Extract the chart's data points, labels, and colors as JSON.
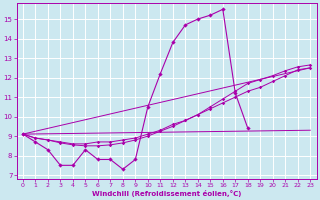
{
  "xlabel": "Windchill (Refroidissement éolien,°C)",
  "ylabel": "",
  "background_color": "#cce8f0",
  "grid_color": "#ffffff",
  "line_color": "#aa00aa",
  "xlim": [
    -0.5,
    23.5
  ],
  "ylim": [
    6.8,
    15.8
  ],
  "xticks": [
    0,
    1,
    2,
    3,
    4,
    5,
    6,
    7,
    8,
    9,
    10,
    11,
    12,
    13,
    14,
    15,
    16,
    17,
    18,
    19,
    20,
    21,
    22,
    23
  ],
  "yticks": [
    7,
    8,
    9,
    10,
    11,
    12,
    13,
    14,
    15
  ],
  "series_jagged": {
    "x": [
      0,
      1,
      2,
      3,
      4,
      5,
      6,
      7,
      8,
      9,
      10,
      11,
      12,
      13,
      14,
      15,
      16,
      17,
      18
    ],
    "y": [
      9.1,
      8.7,
      8.3,
      7.5,
      7.5,
      8.3,
      7.8,
      7.8,
      7.3,
      7.8,
      10.5,
      12.2,
      13.8,
      14.7,
      15.0,
      15.2,
      15.5,
      11.2,
      9.4
    ]
  },
  "series_line2": {
    "x": [
      0,
      1,
      2,
      3,
      4,
      5,
      6,
      7,
      8,
      9,
      10,
      11,
      12,
      13,
      14,
      15,
      16,
      17,
      18,
      19,
      20,
      21,
      22,
      23
    ],
    "y": [
      9.1,
      8.9,
      8.8,
      8.7,
      8.6,
      8.6,
      8.7,
      8.7,
      8.8,
      8.9,
      9.1,
      9.3,
      9.6,
      9.8,
      10.1,
      10.4,
      10.7,
      11.0,
      11.3,
      11.5,
      11.8,
      12.1,
      12.4,
      12.5
    ]
  },
  "series_line3": {
    "x": [
      0,
      1,
      2,
      3,
      4,
      5,
      6,
      7,
      8,
      9,
      10,
      11,
      12,
      13,
      14,
      15,
      16,
      17,
      18,
      19,
      20,
      21,
      22,
      23
    ],
    "y": [
      9.1,
      8.9,
      8.8,
      8.65,
      8.55,
      8.5,
      8.5,
      8.55,
      8.65,
      8.8,
      9.0,
      9.25,
      9.5,
      9.8,
      10.1,
      10.5,
      10.9,
      11.3,
      11.7,
      11.9,
      12.1,
      12.35,
      12.55,
      12.65
    ]
  },
  "series_trend_low": {
    "x": [
      0,
      23
    ],
    "y": [
      9.1,
      9.3
    ]
  },
  "series_trend_high": {
    "x": [
      0,
      23
    ],
    "y": [
      9.1,
      12.5
    ]
  }
}
